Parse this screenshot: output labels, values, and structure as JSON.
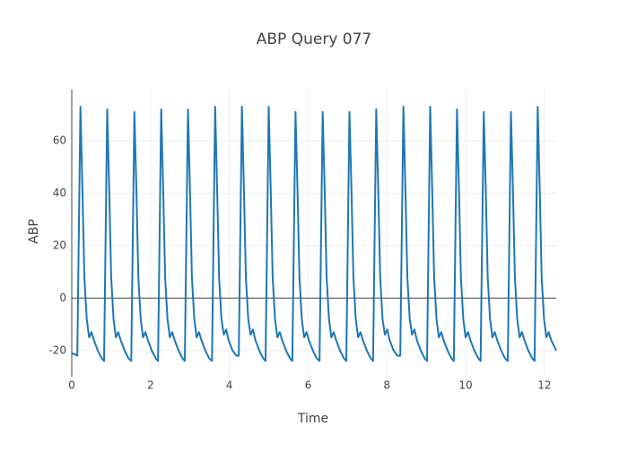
{
  "chart_data": {
    "type": "line",
    "title": "ABP Query 077",
    "xlabel": "Time",
    "ylabel": "ABP",
    "xlim": [
      0,
      12.3
    ],
    "ylim": [
      -30,
      79.5
    ],
    "xticks": [
      0,
      2,
      4,
      6,
      8,
      10,
      12
    ],
    "yticks": [
      -20,
      0,
      20,
      40,
      60
    ],
    "grid": true,
    "x": [
      0,
      0.08,
      0.14,
      0.22,
      0.27,
      0.32,
      0.38,
      0.44,
      0.5,
      0.56,
      0.66,
      0.76,
      0.82,
      0.9,
      0.95,
      1.0,
      1.06,
      1.12,
      1.18,
      1.24,
      1.34,
      1.44,
      1.51,
      1.59,
      1.64,
      1.69,
      1.75,
      1.81,
      1.87,
      1.93,
      2.03,
      2.13,
      2.19,
      2.27,
      2.32,
      2.37,
      2.43,
      2.49,
      2.55,
      2.61,
      2.71,
      2.81,
      2.87,
      2.95,
      3.0,
      3.05,
      3.11,
      3.17,
      3.23,
      3.29,
      3.39,
      3.49,
      3.56,
      3.64,
      3.69,
      3.74,
      3.8,
      3.86,
      3.92,
      3.98,
      4.08,
      4.18,
      4.24,
      4.32,
      4.37,
      4.42,
      4.48,
      4.54,
      4.6,
      4.66,
      4.76,
      4.86,
      4.92,
      5.0,
      5.05,
      5.1,
      5.16,
      5.22,
      5.28,
      5.34,
      5.44,
      5.54,
      5.6,
      5.68,
      5.73,
      5.78,
      5.84,
      5.9,
      5.96,
      6.02,
      6.12,
      6.22,
      6.29,
      6.37,
      6.42,
      6.47,
      6.53,
      6.59,
      6.65,
      6.71,
      6.81,
      6.91,
      6.97,
      7.05,
      7.1,
      7.15,
      7.21,
      7.27,
      7.33,
      7.39,
      7.49,
      7.59,
      7.65,
      7.73,
      7.78,
      7.83,
      7.89,
      7.95,
      8.01,
      8.07,
      8.17,
      8.27,
      8.34,
      8.42,
      8.47,
      8.52,
      8.58,
      8.64,
      8.7,
      8.76,
      8.86,
      8.96,
      9.02,
      9.1,
      9.15,
      9.2,
      9.26,
      9.32,
      9.38,
      9.44,
      9.54,
      9.64,
      9.7,
      9.78,
      9.83,
      9.88,
      9.94,
      10.0,
      10.06,
      10.12,
      10.22,
      10.32,
      10.38,
      10.46,
      10.51,
      10.56,
      10.62,
      10.68,
      10.74,
      10.8,
      10.9,
      11.0,
      11.07,
      11.15,
      11.2,
      11.25,
      11.31,
      11.37,
      11.43,
      11.49,
      11.59,
      11.69,
      11.75,
      11.83,
      11.88,
      11.93,
      11.99,
      12.05,
      12.11,
      12.17,
      12.3
    ],
    "series": [
      {
        "name": "ABP",
        "color": "#1f77b4",
        "values": [
          -21,
          -21.5,
          -22,
          73,
          42,
          8,
          -8,
          -15,
          -13,
          -16,
          -20,
          -23,
          -24,
          72,
          42,
          8,
          -8,
          -15,
          -13,
          -16,
          -20,
          -23,
          -24,
          71,
          42,
          8,
          -8,
          -15,
          -13,
          -16,
          -20,
          -23,
          -24,
          72,
          42,
          8,
          -8,
          -15,
          -13,
          -16,
          -20,
          -23,
          -24,
          72,
          42,
          8,
          -8,
          -15,
          -13,
          -16,
          -20,
          -23,
          -24,
          73,
          42,
          8,
          -8,
          -14,
          -12,
          -16,
          -20,
          -22,
          -22,
          73,
          42,
          8,
          -8,
          -14,
          -12,
          -16,
          -20,
          -23,
          -24,
          73,
          42,
          8,
          -8,
          -15,
          -13,
          -16,
          -20,
          -23,
          -24,
          71,
          42,
          8,
          -8,
          -15,
          -13,
          -16,
          -20,
          -23,
          -24,
          71,
          42,
          8,
          -8,
          -15,
          -13,
          -16,
          -20,
          -23,
          -24,
          71,
          42,
          8,
          -8,
          -15,
          -13,
          -16,
          -20,
          -23,
          -24,
          72,
          42,
          8,
          -8,
          -14,
          -12,
          -16,
          -20,
          -22,
          -22,
          73,
          42,
          8,
          -8,
          -14,
          -12,
          -16,
          -20,
          -23,
          -24,
          73,
          42,
          8,
          -8,
          -15,
          -13,
          -16,
          -20,
          -23,
          -24,
          72,
          42,
          8,
          -8,
          -15,
          -13,
          -16,
          -20,
          -23,
          -24,
          71,
          42,
          8,
          -8,
          -15,
          -13,
          -16,
          -20,
          -23,
          -24,
          71,
          42,
          8,
          -8,
          -15,
          -13,
          -16,
          -20,
          -23,
          -24,
          73,
          42,
          8,
          -8,
          -15,
          -13,
          -16,
          -20
        ]
      }
    ]
  }
}
